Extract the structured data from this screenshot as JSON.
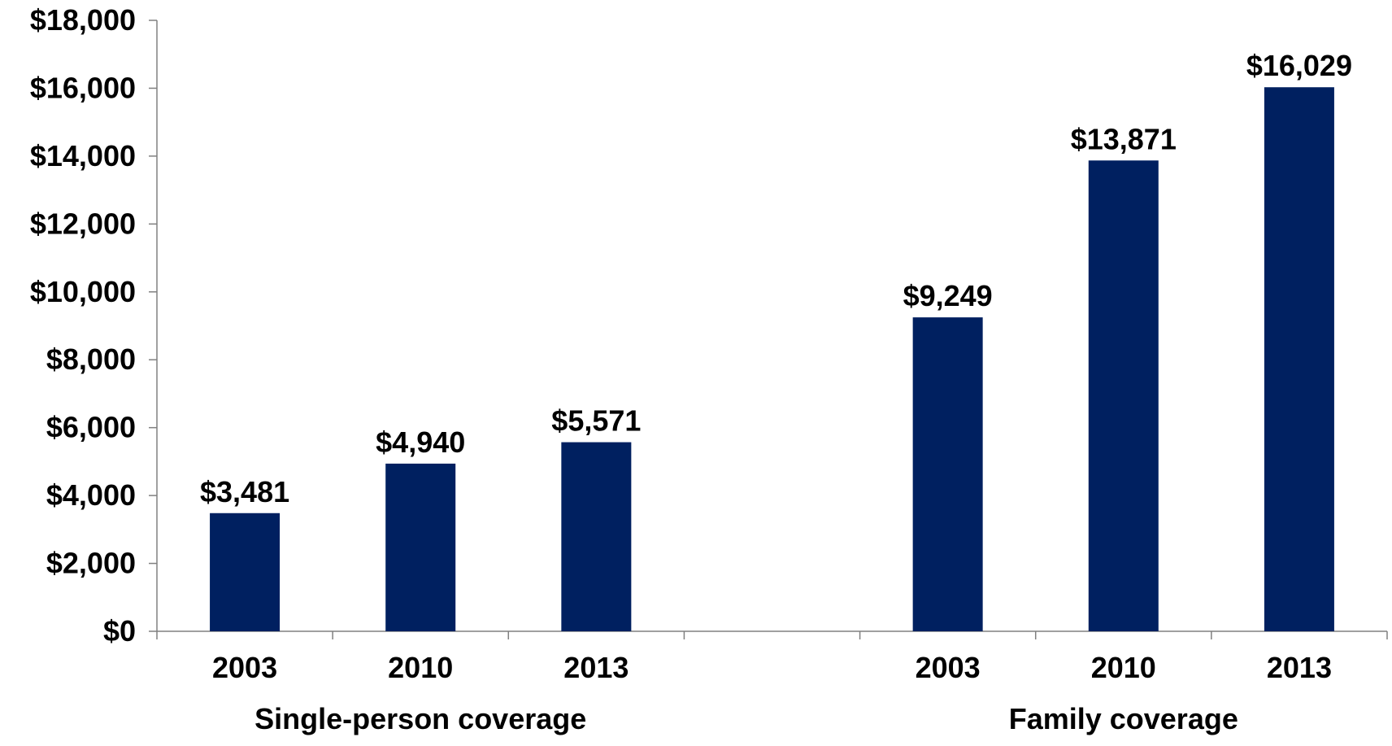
{
  "chart_data": {
    "type": "bar",
    "groups": [
      {
        "label": "Single-person coverage",
        "bars": [
          {
            "category": "2003",
            "value": 3481,
            "label": "$3,481"
          },
          {
            "category": "2010",
            "value": 4940,
            "label": "$4,940"
          },
          {
            "category": "2013",
            "value": 5571,
            "label": "$5,571"
          }
        ]
      },
      {
        "label": "Family coverage",
        "bars": [
          {
            "category": "2003",
            "value": 9249,
            "label": "$9,249"
          },
          {
            "category": "2010",
            "value": 13871,
            "label": "$13,871"
          },
          {
            "category": "2013",
            "value": 16029,
            "label": "$16,029"
          }
        ]
      }
    ],
    "y_ticks": [
      {
        "value": 0,
        "label": "$0"
      },
      {
        "value": 2000,
        "label": "$2,000"
      },
      {
        "value": 4000,
        "label": "$4,000"
      },
      {
        "value": 6000,
        "label": "$6,000"
      },
      {
        "value": 8000,
        "label": "$8,000"
      },
      {
        "value": 10000,
        "label": "$10,000"
      },
      {
        "value": 12000,
        "label": "$12,000"
      },
      {
        "value": 14000,
        "label": "$14,000"
      },
      {
        "value": 16000,
        "label": "$16,000"
      },
      {
        "value": 18000,
        "label": "$18,000"
      }
    ],
    "ylim": [
      0,
      18000
    ],
    "grid": false,
    "legend": "none",
    "bar_color": "#002060",
    "axis_color": "#808080"
  }
}
